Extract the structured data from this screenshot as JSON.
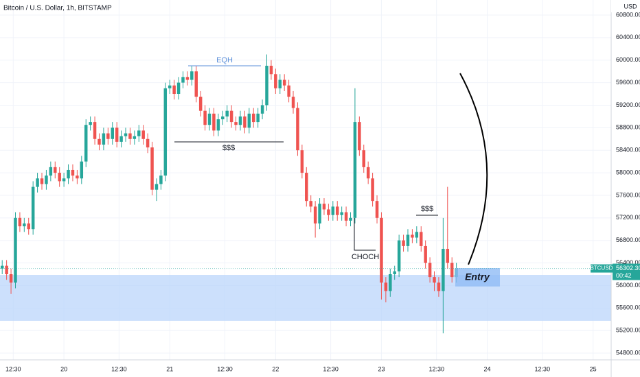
{
  "chart_data": {
    "type": "candlestick",
    "title": "Bitcoin / U.S. Dollar, 1h, BITSTAMP",
    "currency": "USD",
    "symbol_tag": "BTCUSD",
    "last_price_label": "56302.30",
    "countdown": "00:42",
    "annotations": {
      "eqh": "EQH",
      "liquidity_top": "$$$",
      "choch": "CHOCH",
      "liquidity_low": "$$$",
      "entry": "Entry"
    },
    "up_color": "#26a69a",
    "down_color": "#ef5350",
    "grid": true,
    "x": [
      -14,
      -13,
      -12,
      -11,
      -10,
      -9,
      -8,
      -7,
      -6,
      -5,
      -4,
      -3,
      -2,
      -1,
      0,
      1,
      2,
      3,
      4,
      5,
      6,
      7,
      8,
      9,
      10,
      11,
      12,
      13,
      14,
      15,
      16,
      17,
      18,
      19,
      20,
      21,
      22,
      23,
      24,
      25,
      26,
      27,
      28,
      29,
      30,
      31,
      32,
      33,
      34,
      35,
      36,
      37,
      38,
      39,
      40,
      41,
      42,
      43,
      44,
      45,
      46,
      47,
      48,
      49,
      50,
      51,
      52,
      53,
      54,
      55,
      56,
      57,
      58,
      59,
      60,
      61,
      62,
      63,
      64,
      65,
      66,
      67,
      68,
      69,
      70,
      71,
      72,
      73,
      74,
      75,
      76,
      77,
      78,
      79,
      80,
      81,
      82,
      83,
      84,
      85,
      86,
      87,
      88,
      89
    ],
    "open": [
      56300,
      56350,
      56200,
      56050,
      57200,
      57050,
      57100,
      57000,
      57750,
      57900,
      57800,
      57950,
      58100,
      58000,
      57850,
      57900,
      58050,
      57950,
      57900,
      58200,
      58850,
      58900,
      58600,
      58500,
      58700,
      58600,
      58800,
      58550,
      58650,
      58700,
      58600,
      58650,
      58750,
      58600,
      58450,
      57700,
      57800,
      57950,
      59500,
      59550,
      59400,
      59600,
      59700,
      59650,
      59800,
      59350,
      59100,
      58850,
      59050,
      58750,
      58950,
      59000,
      59100,
      58900,
      58850,
      59000,
      58800,
      59050,
      58900,
      59050,
      59200,
      59900,
      59750,
      59500,
      59650,
      59550,
      59350,
      59150,
      58400,
      58000,
      57500,
      57400,
      57100,
      57450,
      57350,
      57250,
      57400,
      57250,
      57300,
      57150,
      57200,
      58900,
      58400,
      58100,
      57900,
      57500,
      57200,
      56050,
      55900,
      56200,
      56250,
      56800,
      56700,
      56900,
      56850,
      56950,
      56700,
      56400,
      56150,
      56050,
      55900,
      56650,
      56400,
      56150
    ],
    "high": [
      56450,
      56450,
      56300,
      57300,
      57300,
      57200,
      57200,
      57850,
      58000,
      58000,
      58050,
      58200,
      58200,
      58100,
      58000,
      58150,
      58150,
      58050,
      58300,
      58950,
      59000,
      59000,
      58700,
      58800,
      58800,
      58900,
      58900,
      58750,
      58800,
      58800,
      58750,
      58850,
      58850,
      58700,
      58550,
      57900,
      58050,
      59600,
      59650,
      59650,
      59700,
      59800,
      59800,
      59900,
      59900,
      59450,
      59200,
      59150,
      59150,
      59050,
      59100,
      59200,
      59200,
      59000,
      59100,
      59100,
      59150,
      59150,
      59150,
      59300,
      60100,
      60000,
      59850,
      59750,
      59750,
      59650,
      59450,
      59250,
      58500,
      58100,
      57600,
      57500,
      57550,
      57550,
      57450,
      57500,
      57500,
      57400,
      57400,
      57300,
      59500,
      59000,
      58500,
      58200,
      58000,
      57600,
      57300,
      56150,
      56300,
      56350,
      56900,
      56900,
      57000,
      57000,
      57050,
      57050,
      56800,
      56500,
      56250,
      56150,
      57200,
      57750,
      56500,
      56400
    ],
    "low": [
      56200,
      56100,
      55850,
      55950,
      56950,
      56950,
      56900,
      56900,
      57650,
      57700,
      57700,
      57850,
      57900,
      57750,
      57750,
      57800,
      57850,
      57800,
      57800,
      58100,
      58750,
      58500,
      58400,
      58400,
      58500,
      58500,
      58450,
      58450,
      58550,
      58500,
      58500,
      58550,
      58500,
      58350,
      57600,
      57500,
      57700,
      57850,
      59400,
      59300,
      59300,
      59500,
      59550,
      59550,
      59250,
      59000,
      58750,
      58750,
      58650,
      58650,
      58850,
      58900,
      58800,
      58750,
      58750,
      58700,
      58700,
      58800,
      58800,
      58950,
      59100,
      59650,
      59400,
      59400,
      59450,
      59250,
      59050,
      58300,
      57900,
      57400,
      57300,
      56850,
      57000,
      57250,
      57150,
      57150,
      57150,
      57150,
      57050,
      57050,
      57100,
      58300,
      58000,
      57800,
      57400,
      57100,
      55750,
      55700,
      55800,
      56100,
      56150,
      56600,
      56600,
      56750,
      56750,
      56600,
      56300,
      56050,
      55900,
      55800,
      55150,
      56300,
      56050,
      56050
    ],
    "close": [
      56350,
      56200,
      56050,
      57200,
      57050,
      57100,
      57000,
      57750,
      57900,
      57800,
      57950,
      58100,
      58000,
      57850,
      57900,
      58050,
      57950,
      57900,
      58200,
      58850,
      58900,
      58600,
      58500,
      58700,
      58600,
      58800,
      58550,
      58650,
      58700,
      58600,
      58650,
      58750,
      58600,
      58450,
      57700,
      57800,
      57950,
      59500,
      59550,
      59400,
      59600,
      59700,
      59650,
      59800,
      59350,
      59100,
      58850,
      59050,
      58750,
      58950,
      59000,
      59100,
      58900,
      58850,
      59000,
      58800,
      59050,
      58900,
      59050,
      59200,
      59900,
      59750,
      59500,
      59650,
      59550,
      59350,
      59150,
      58400,
      58000,
      57500,
      57400,
      57100,
      57450,
      57350,
      57250,
      57400,
      57250,
      57300,
      57150,
      57200,
      58900,
      58400,
      58100,
      57900,
      57500,
      57200,
      56050,
      55900,
      56200,
      56250,
      56800,
      56700,
      56900,
      56850,
      56950,
      56700,
      56400,
      56150,
      56050,
      55900,
      56650,
      56400,
      56150,
      56302.3
    ],
    "xlim": [
      -14.5,
      124.1
    ],
    "xticks": [
      {
        "value": -11.5,
        "label": "12:30"
      },
      {
        "value": 0,
        "label": "20"
      },
      {
        "value": 12.5,
        "label": "12:30"
      },
      {
        "value": 24,
        "label": "21"
      },
      {
        "value": 36.5,
        "label": "12:30"
      },
      {
        "value": 48,
        "label": "22"
      },
      {
        "value": 60.5,
        "label": "12:30"
      },
      {
        "value": 72,
        "label": "23"
      },
      {
        "value": 84.5,
        "label": "12:30"
      },
      {
        "value": 96,
        "label": "24"
      },
      {
        "value": 108.5,
        "label": "12:30"
      },
      {
        "value": 120,
        "label": "25"
      }
    ],
    "ylim": [
      54740,
      61067
    ],
    "yticks": [
      {
        "value": 54800,
        "label": "54800.00"
      },
      {
        "value": 55200,
        "label": "55200.00"
      },
      {
        "value": 55600,
        "label": "55600.00"
      },
      {
        "value": 56000,
        "label": "56000.00"
      },
      {
        "value": 56400,
        "label": "56400.00"
      },
      {
        "value": 56800,
        "label": "56800.00"
      },
      {
        "value": 57200,
        "label": "57200.00"
      },
      {
        "value": 57600,
        "label": "57600.00"
      },
      {
        "value": 58000,
        "label": "58000.00"
      },
      {
        "value": 58400,
        "label": "58400.00"
      },
      {
        "value": 58800,
        "label": "58800.00"
      },
      {
        "value": 59200,
        "label": "59200.00"
      },
      {
        "value": 59600,
        "label": "59600.00"
      },
      {
        "value": 60000,
        "label": "60000.00"
      },
      {
        "value": 60400,
        "label": "60400.00"
      },
      {
        "value": 60800,
        "label": "60800.00"
      }
    ]
  }
}
